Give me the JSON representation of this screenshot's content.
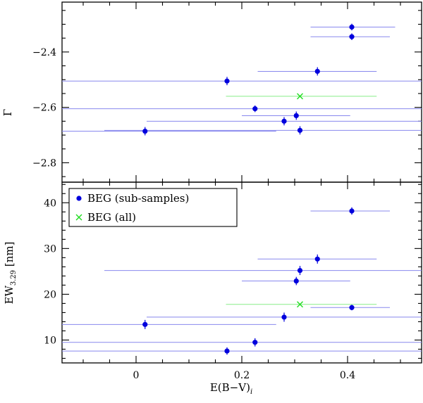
{
  "chart_data": {
    "type": "scatter",
    "x_label_main": "E(B−V)",
    "x_label_sub": "i",
    "xlim": [
      -0.14,
      0.54
    ],
    "x_ticks": [
      0,
      0.2,
      0.4
    ],
    "x_tick_labels": [
      "0",
      "0.2",
      "0.4"
    ],
    "panels": [
      {
        "id": "gamma",
        "ylabel": "Γ",
        "ylim": [
          -2.87,
          -2.22
        ],
        "y_ticks": [
          -2.4,
          -2.6,
          -2.8
        ],
        "y_tick_labels": [
          "−2.4",
          "−2.6",
          "−2.8"
        ],
        "series": [
          {
            "name": "BEG (sub-samples)",
            "color": "#0000dd",
            "error_color": "#8888ee",
            "marker": "circle",
            "points": [
              {
                "x": 0.408,
                "xmin": 0.33,
                "xmax": 0.49,
                "y": -2.31,
                "yerr": 0.012
              },
              {
                "x": 0.408,
                "xmin": 0.33,
                "xmax": 0.48,
                "y": -2.345,
                "yerr": 0.012
              },
              {
                "x": 0.343,
                "xmin": 0.23,
                "xmax": 0.455,
                "y": -2.47,
                "yerr": 0.015
              },
              {
                "x": 0.172,
                "xmin": -0.14,
                "xmax": 0.54,
                "y": -2.505,
                "yerr": 0.015
              },
              {
                "x": 0.225,
                "xmin": -0.14,
                "xmax": 0.54,
                "y": -2.605,
                "yerr": 0.012
              },
              {
                "x": 0.303,
                "xmin": 0.2,
                "xmax": 0.405,
                "y": -2.63,
                "yerr": 0.015
              },
              {
                "x": 0.28,
                "xmin": 0.02,
                "xmax": 0.54,
                "y": -2.65,
                "yerr": 0.015
              },
              {
                "x": 0.31,
                "xmin": -0.06,
                "xmax": 0.54,
                "y": -2.683,
                "yerr": 0.015
              },
              {
                "x": 0.017,
                "xmin": -0.14,
                "xmax": 0.265,
                "y": -2.686,
                "yerr": 0.015
              }
            ]
          },
          {
            "name": "BEG (all)",
            "color": "#22dd22",
            "error_color": "#88ee88",
            "marker": "cross",
            "points": [
              {
                "x": 0.31,
                "xmin": 0.17,
                "xmax": 0.455,
                "y": -2.56
              }
            ]
          }
        ]
      },
      {
        "id": "ew",
        "ylabel_main": "EW",
        "ylabel_sub": "3.29",
        "ylabel_unit": "[nm]",
        "ylim": [
          5,
          44.5
        ],
        "y_ticks": [
          10,
          20,
          30,
          40
        ],
        "y_tick_labels": [
          "10",
          "20",
          "30",
          "40"
        ],
        "legend": {
          "position": "top-left"
        },
        "series": [
          {
            "name": "BEG (sub-samples)",
            "color": "#0000dd",
            "error_color": "#8888ee",
            "marker": "circle",
            "points": [
              {
                "x": 0.408,
                "xmin": 0.33,
                "xmax": 0.48,
                "y": 38.2,
                "yerr": 0.8
              },
              {
                "x": 0.343,
                "xmin": 0.23,
                "xmax": 0.455,
                "y": 27.7,
                "yerr": 1.0
              },
              {
                "x": 0.31,
                "xmin": -0.06,
                "xmax": 0.54,
                "y": 25.2,
                "yerr": 1.0
              },
              {
                "x": 0.303,
                "xmin": 0.2,
                "xmax": 0.405,
                "y": 22.9,
                "yerr": 0.9
              },
              {
                "x": 0.408,
                "xmin": 0.33,
                "xmax": 0.48,
                "y": 17.1,
                "yerr": 0.6
              },
              {
                "x": 0.28,
                "xmin": 0.02,
                "xmax": 0.54,
                "y": 15.0,
                "yerr": 1.0
              },
              {
                "x": 0.017,
                "xmin": -0.14,
                "xmax": 0.265,
                "y": 13.4,
                "yerr": 1.0
              },
              {
                "x": 0.225,
                "xmin": -0.14,
                "xmax": 0.54,
                "y": 9.5,
                "yerr": 0.9
              },
              {
                "x": 0.172,
                "xmin": -0.14,
                "xmax": 0.54,
                "y": 7.6,
                "yerr": 0.8
              }
            ]
          },
          {
            "name": "BEG (all)",
            "color": "#22dd22",
            "error_color": "#88ee88",
            "marker": "cross",
            "points": [
              {
                "x": 0.31,
                "xmin": 0.17,
                "xmax": 0.455,
                "y": 17.8
              }
            ]
          }
        ]
      }
    ]
  }
}
